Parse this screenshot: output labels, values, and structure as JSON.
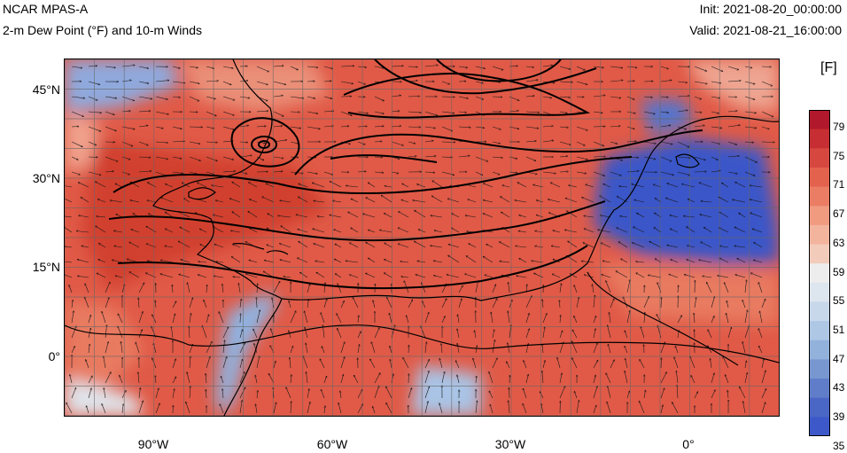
{
  "header": {
    "model": "NCAR MPAS-A",
    "field": "2-m Dew Point (°F) and 10-m Winds",
    "init": "Init: 2021-08-20_00:00:00",
    "valid": "Valid: 2021-08-21_16:00:00"
  },
  "map": {
    "lat_labels": [
      "45°N",
      "30°N",
      "15°N",
      "0°"
    ],
    "lon_labels": [
      "90°W",
      "60°W",
      "30°W",
      "0°"
    ],
    "ocean_color": "#e2624e",
    "dry_color": "#3d59c9",
    "grid_color": "#6b6b6b"
  },
  "colorbar": {
    "unit": "[F]",
    "tick_labels": [
      "79",
      "75",
      "71",
      "67",
      "63",
      "59",
      "55",
      "51",
      "47",
      "43",
      "39",
      "35"
    ],
    "colors": [
      "#b2182b",
      "#c62e33",
      "#d6473f",
      "#e2624e",
      "#ea7d64",
      "#f09a80",
      "#f3b49e",
      "#f3cbba",
      "#ededed",
      "#dde5ee",
      "#c7d8ea",
      "#adc7e5",
      "#92b2dc",
      "#7897d1",
      "#5f7dc8",
      "#4a67c6",
      "#3d59c9"
    ]
  }
}
